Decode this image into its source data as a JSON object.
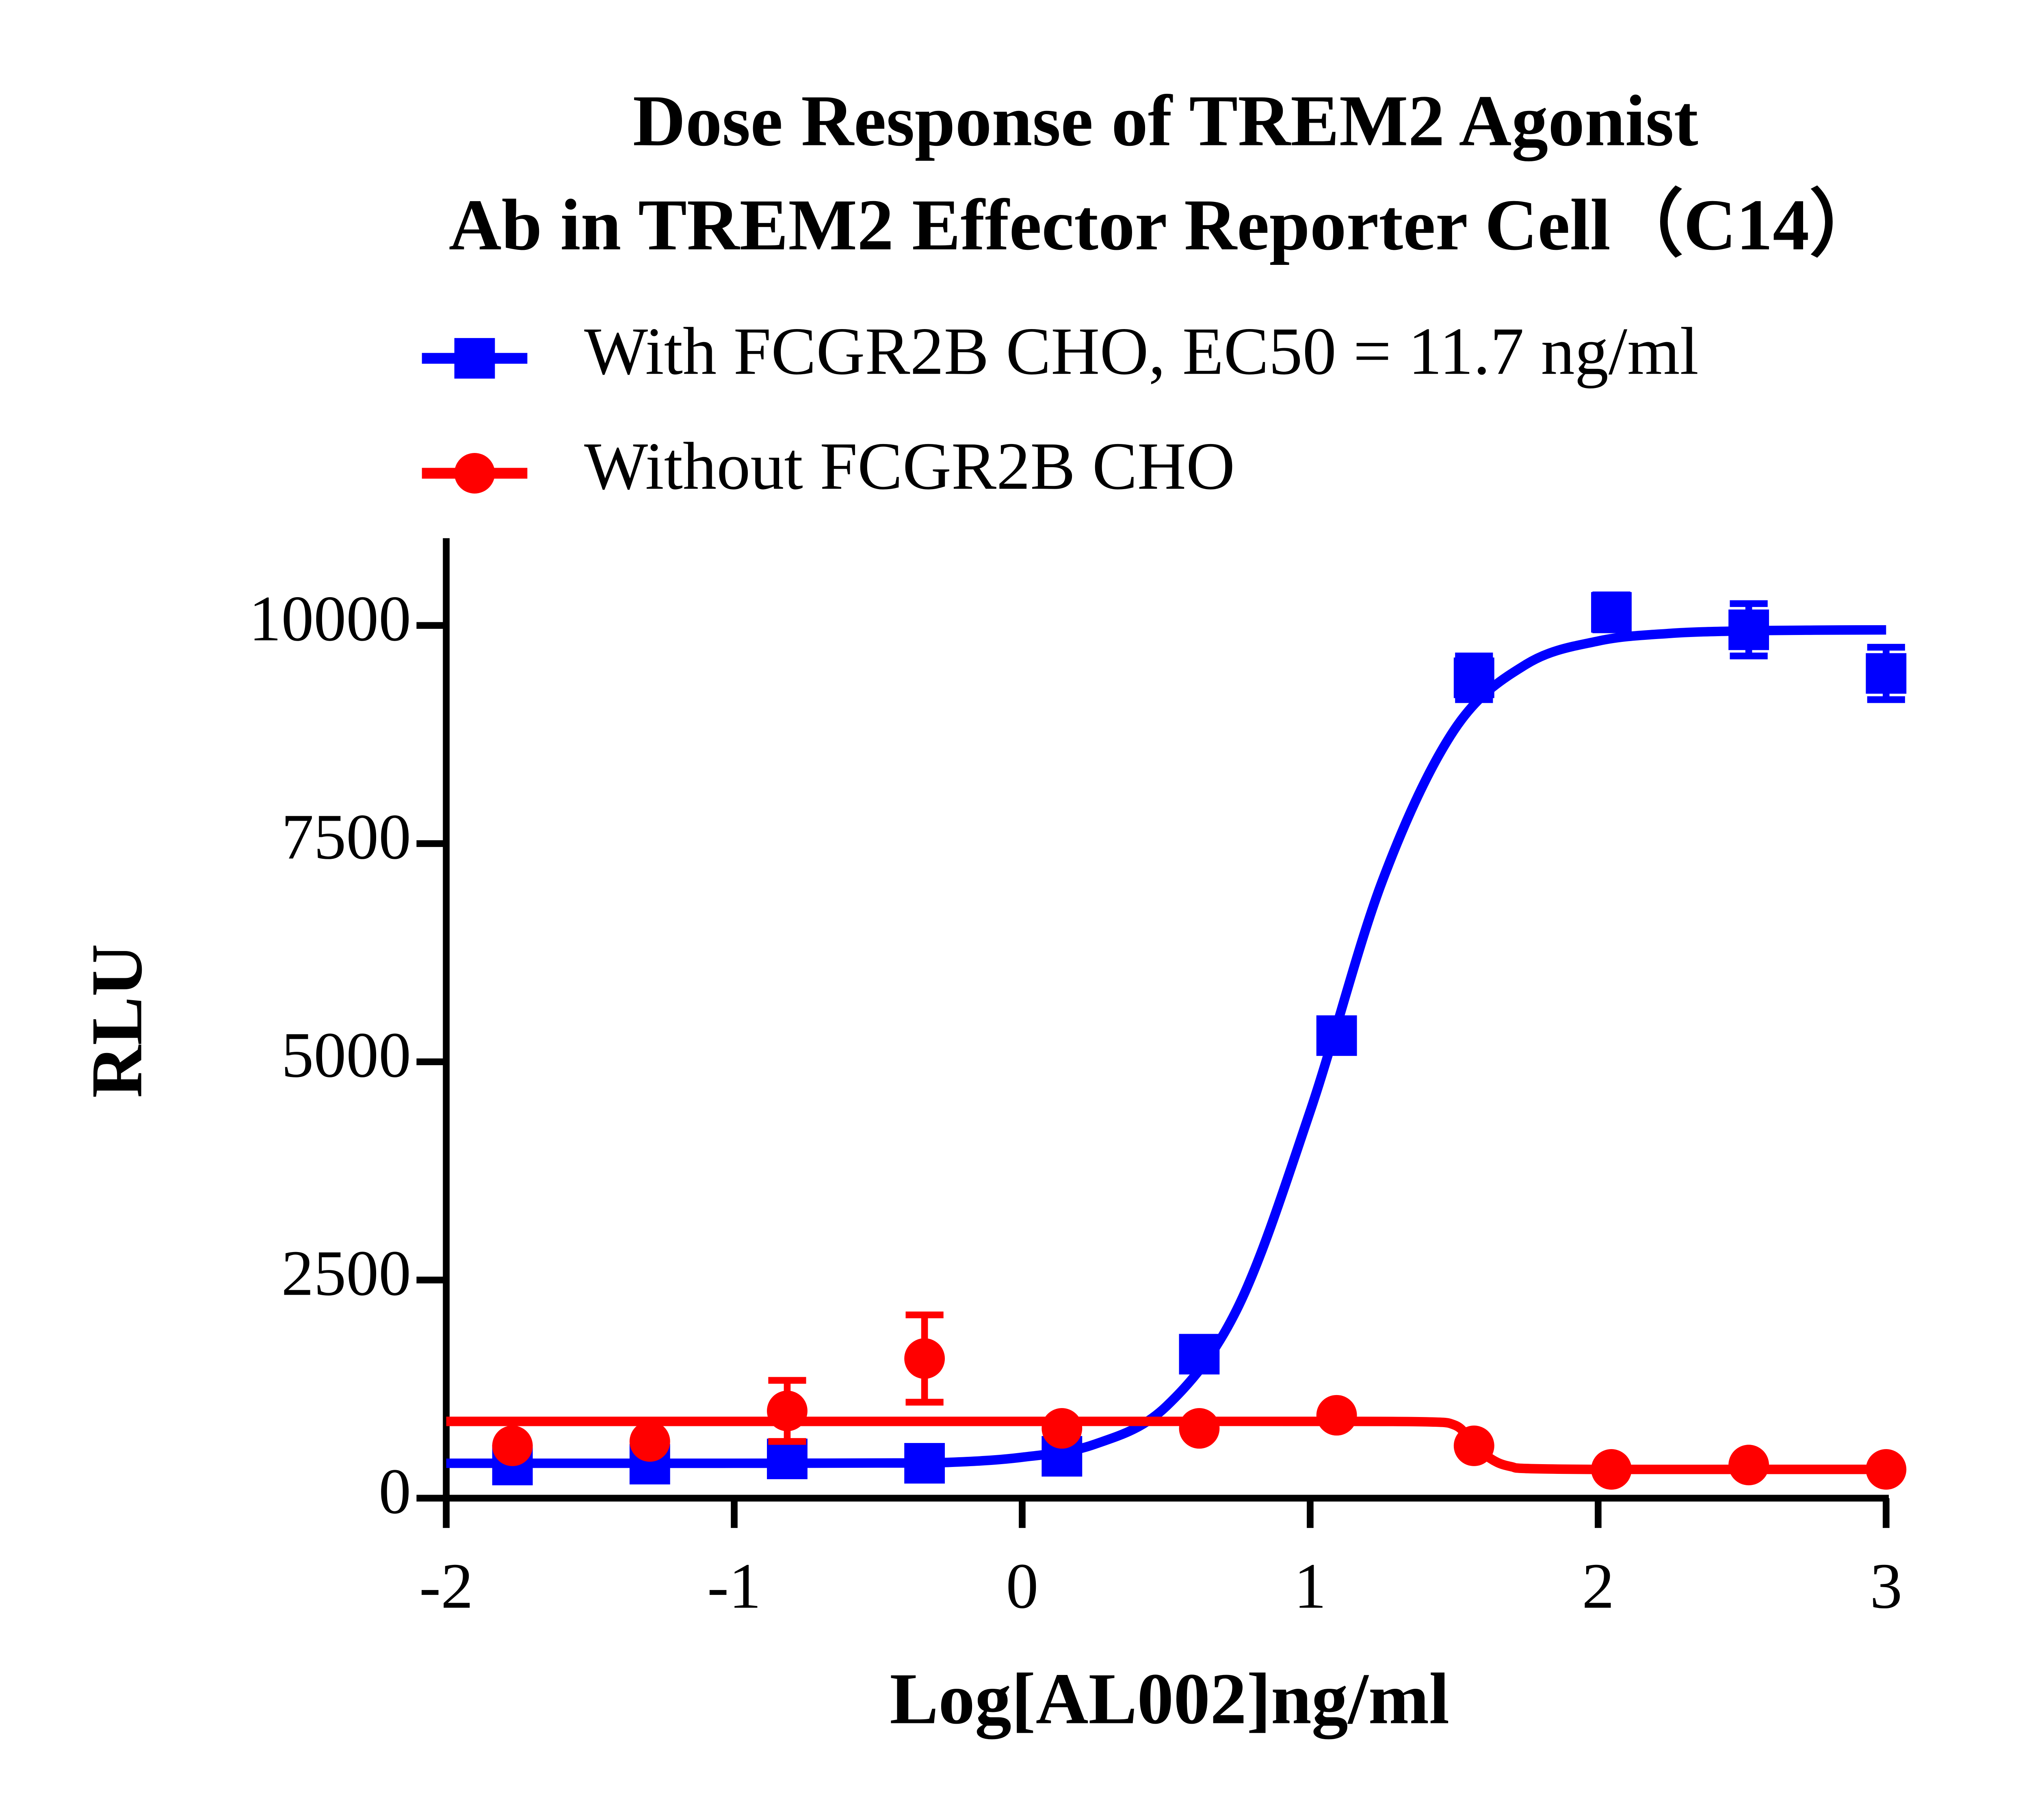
{
  "chart_data": {
    "type": "dose-response",
    "title": [
      "Dose Response of TREM2 Agonist",
      "Ab in TREM2 Effector Reporter Cell（C14）"
    ],
    "x_label": "Log[AL002]ng/ml",
    "y_label": "RLU",
    "xlim": [
      -2,
      3
    ],
    "xticks": [
      -2,
      -1,
      0,
      1,
      2,
      3
    ],
    "ylim": [
      0,
      11000
    ],
    "yticks": [
      0,
      2500,
      5000,
      7500,
      10000
    ],
    "series": [
      {
        "name": "With FCGR2B CHO, EC50 = 11.7 ng/ml",
        "color": "#0000ff",
        "marker": "square",
        "x": [
          -1.77,
          -1.293,
          -0.816,
          -0.339,
          0.138,
          0.615,
          1.092,
          1.569,
          2.046,
          2.523,
          3.0
        ],
        "values": [
          380,
          390,
          450,
          400,
          480,
          1650,
          5300,
          9400,
          10150,
          9950,
          9450
        ],
        "errors": [
          60,
          60,
          60,
          60,
          60,
          80,
          100,
          250,
          200,
          300,
          300
        ],
        "curve": {
          "x": [
            -2,
            -1.75,
            -1.5,
            -1.25,
            -1,
            -0.75,
            -0.5,
            -0.25,
            0,
            0.25,
            0.5,
            0.75,
            1,
            1.25,
            1.5,
            1.75,
            2,
            2.25,
            2.5,
            2.75,
            3
          ],
          "values": [
            400,
            400,
            400,
            400,
            400,
            401,
            403,
            411,
            469,
            616,
            1051,
            2193,
            4433,
            7067,
            8801,
            9554,
            9821,
            9909,
            9937,
            9946,
            9949
          ]
        }
      },
      {
        "name": "Without FCGR2B CHO",
        "color": "#ff0000",
        "marker": "circle",
        "x": [
          -1.77,
          -1.293,
          -0.816,
          -0.339,
          0.138,
          0.615,
          1.092,
          1.569,
          2.046,
          2.523,
          3.0
        ],
        "values": [
          600,
          650,
          1000,
          1600,
          800,
          800,
          950,
          600,
          330,
          380,
          330
        ],
        "errors": [
          40,
          40,
          350,
          500,
          40,
          40,
          40,
          40,
          30,
          30,
          30
        ],
        "curve": {
          "x": [
            -2,
            -1,
            0,
            1,
            1.4,
            1.5,
            1.55,
            1.6,
            1.65,
            1.7,
            1.75,
            2,
            2.5,
            3
          ],
          "values": [
            880,
            880,
            880,
            880,
            875,
            840,
            700,
            520,
            410,
            360,
            340,
            330,
            330,
            330
          ]
        }
      }
    ]
  }
}
